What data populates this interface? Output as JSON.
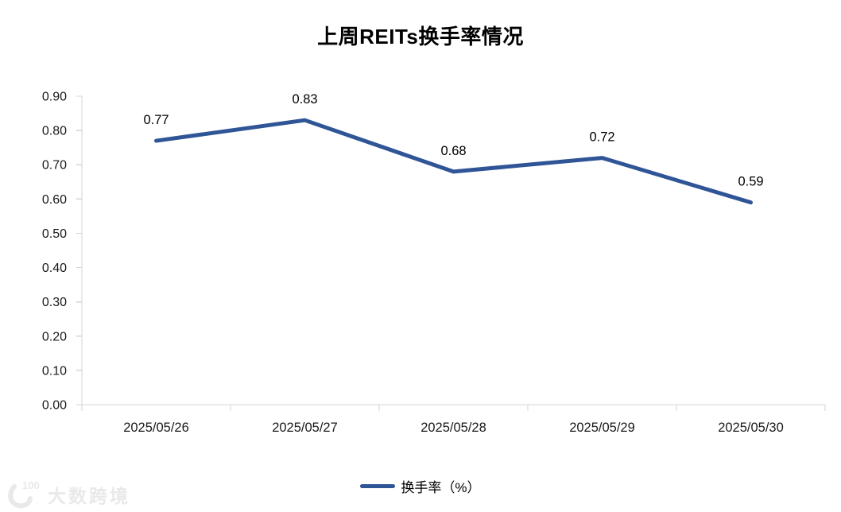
{
  "chart_data": {
    "type": "line",
    "title": "上周REITs换手率情况",
    "categories": [
      "2025/05/26",
      "2025/05/27",
      "2025/05/28",
      "2025/05/29",
      "2025/05/30"
    ],
    "series": [
      {
        "name": "换手率（%）",
        "values": [
          0.77,
          0.83,
          0.68,
          0.72,
          0.59
        ]
      }
    ],
    "data_labels": [
      "0.77",
      "0.83",
      "0.68",
      "0.72",
      "0.59"
    ],
    "y_ticks": [
      "0.90",
      "0.80",
      "0.70",
      "0.60",
      "0.50",
      "0.40",
      "0.30",
      "0.20",
      "0.10",
      "0.00"
    ],
    "ylim": [
      0,
      0.9
    ],
    "xlabel": "",
    "ylabel": "",
    "grid": false,
    "legend_position": "bottom-center",
    "colors": {
      "line": "#2F5597",
      "axis": "#d6d6d6",
      "tick_label": "#1a1a1a",
      "data_label": "#000000",
      "title": "#000000"
    }
  },
  "watermark": {
    "logo": "100",
    "text": "大数跨境",
    "color": "#e9e9e9"
  }
}
